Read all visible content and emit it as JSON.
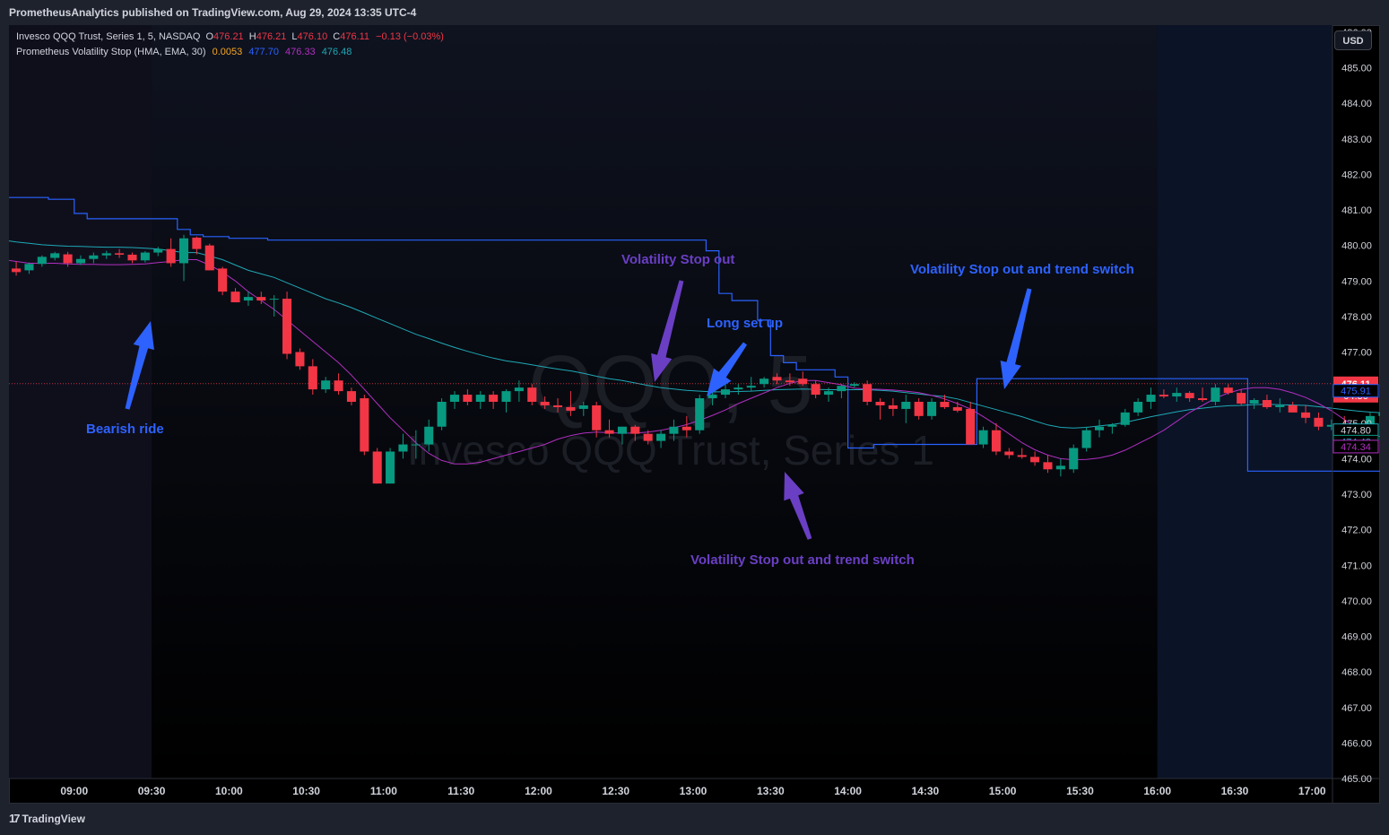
{
  "header": {
    "published": "PrometheusAnalytics published on TradingView.com, Aug 29, 2024 13:35 UTC-4"
  },
  "legend": {
    "symbol": "Invesco QQQ Trust, Series 1, 5, NASDAQ",
    "o_label": "O",
    "o_value": "476.21",
    "h_label": "H",
    "h_value": "476.21",
    "l_label": "L",
    "l_value": "476.10",
    "c_label": "C",
    "c_value": "476.11",
    "change": "−0.13 (−0.03%)",
    "indicator": "Prometheus Volatility Stop (HMA, EMA, 30)",
    "ind_v1": "0.0053",
    "ind_v2": "477.70",
    "ind_v3": "476.33",
    "ind_v4": "476.48"
  },
  "watermark": {
    "line1": "QQQ, 5",
    "line2": "Invesco QQQ Trust, Series 1"
  },
  "currency_button": "USD",
  "footer": {
    "brand": "TradingView",
    "logo_mark": "17"
  },
  "annotations": [
    {
      "text": "Volatility Stop out",
      "color": "#6a3fc4"
    },
    {
      "text": "Volatility Stop out and trend switch",
      "color": "#2e62ff"
    },
    {
      "text": "Long set up",
      "color": "#2e62ff"
    },
    {
      "text": "Bearish ride",
      "color": "#2e62ff"
    },
    {
      "text": "Volatility Stop out and trend switch",
      "color": "#6a3fc4"
    }
  ],
  "colors": {
    "up": "#089981",
    "down": "#f23645",
    "stop": "#2962ff",
    "ema": "#1fa8b5",
    "hma": "#b12fc0",
    "bg": "#000000",
    "premarket_shade": "#0f0f1c",
    "postmarket_shade": "#0b1326",
    "arrow_blue": "#2e62ff",
    "arrow_purple": "#6a3fc4"
  },
  "chart_data": {
    "type": "candlestick",
    "ylim": [
      465.0,
      486.2
    ],
    "y_ticks": [
      "465.00",
      "466.00",
      "467.00",
      "468.00",
      "469.00",
      "470.00",
      "471.00",
      "472.00",
      "473.00",
      "474.00",
      "475.00",
      "476.00",
      "477.00",
      "478.00",
      "479.00",
      "480.00",
      "481.00",
      "482.00",
      "483.00",
      "484.00",
      "485.00",
      "486.00"
    ],
    "x_ticks": [
      "09:00",
      "09:30",
      "10:00",
      "10:30",
      "11:00",
      "11:30",
      "12:00",
      "12:30",
      "13:00",
      "13:30",
      "14:00",
      "14:30",
      "15:00",
      "15:30",
      "16:00",
      "16:30",
      "17:00"
    ],
    "session": {
      "open": "09:30",
      "close": "16:00"
    },
    "start_time": "08:30",
    "interval_minutes": 5,
    "candles": [
      [
        479.72,
        479.8,
        479.3,
        479.35
      ],
      [
        479.35,
        479.55,
        479.15,
        479.25
      ],
      [
        479.3,
        479.52,
        479.2,
        479.48
      ],
      [
        479.48,
        479.72,
        479.4,
        479.68
      ],
      [
        479.65,
        479.82,
        479.58,
        479.78
      ],
      [
        479.75,
        479.82,
        479.4,
        479.5
      ],
      [
        479.5,
        479.72,
        479.45,
        479.62
      ],
      [
        479.62,
        479.8,
        479.5,
        479.72
      ],
      [
        479.72,
        479.85,
        479.62,
        479.78
      ],
      [
        479.78,
        479.9,
        479.65,
        479.74
      ],
      [
        479.74,
        479.8,
        479.5,
        479.58
      ],
      [
        479.58,
        479.84,
        479.52,
        479.8
      ],
      [
        479.8,
        479.96,
        479.7,
        479.9
      ],
      [
        479.9,
        480.2,
        479.4,
        479.5
      ],
      [
        479.5,
        480.3,
        479.0,
        480.2
      ],
      [
        480.22,
        480.25,
        479.75,
        479.9
      ],
      [
        480.0,
        480.05,
        479.3,
        479.3
      ],
      [
        479.35,
        479.4,
        478.6,
        478.7
      ],
      [
        478.7,
        478.8,
        478.4,
        478.4
      ],
      [
        478.45,
        478.7,
        478.3,
        478.55
      ],
      [
        478.55,
        478.7,
        478.35,
        478.45
      ],
      [
        478.5,
        478.6,
        478.0,
        478.5
      ],
      [
        478.5,
        478.7,
        476.8,
        476.95
      ],
      [
        477.0,
        477.1,
        476.5,
        476.6
      ],
      [
        476.6,
        476.8,
        475.8,
        475.95
      ],
      [
        475.95,
        476.3,
        475.85,
        476.2
      ],
      [
        476.2,
        476.4,
        475.8,
        475.9
      ],
      [
        475.9,
        476.0,
        475.5,
        475.6
      ],
      [
        475.7,
        475.8,
        474.1,
        474.2
      ],
      [
        474.2,
        474.3,
        473.3,
        473.3
      ],
      [
        473.3,
        474.3,
        473.3,
        474.2
      ],
      [
        474.2,
        474.7,
        474.0,
        474.4
      ],
      [
        474.4,
        474.8,
        474.0,
        474.4
      ],
      [
        474.4,
        475.1,
        474.2,
        474.9
      ],
      [
        474.9,
        475.7,
        474.8,
        475.6
      ],
      [
        475.6,
        475.9,
        475.4,
        475.8
      ],
      [
        475.8,
        475.95,
        475.5,
        475.6
      ],
      [
        475.6,
        475.9,
        475.4,
        475.8
      ],
      [
        475.8,
        475.9,
        475.4,
        475.6
      ],
      [
        475.6,
        475.95,
        475.3,
        475.9
      ],
      [
        475.9,
        476.2,
        475.6,
        476.0
      ],
      [
        476.0,
        476.1,
        475.5,
        475.6
      ],
      [
        475.6,
        475.75,
        475.4,
        475.5
      ],
      [
        475.5,
        475.7,
        475.3,
        475.45
      ],
      [
        475.45,
        475.9,
        475.2,
        475.35
      ],
      [
        475.4,
        475.6,
        475.2,
        475.5
      ],
      [
        475.5,
        475.6,
        474.6,
        474.8
      ],
      [
        474.8,
        475.1,
        474.6,
        474.7
      ],
      [
        474.7,
        474.9,
        474.4,
        474.9
      ],
      [
        474.9,
        474.95,
        474.5,
        474.7
      ],
      [
        474.7,
        474.8,
        474.4,
        474.5
      ],
      [
        474.5,
        474.8,
        474.3,
        474.7
      ],
      [
        474.7,
        475.1,
        474.5,
        474.9
      ],
      [
        474.9,
        475.2,
        474.6,
        474.8
      ],
      [
        474.8,
        475.8,
        474.7,
        475.7
      ],
      [
        475.7,
        475.9,
        475.5,
        475.8
      ],
      [
        475.8,
        476.1,
        475.7,
        475.95
      ],
      [
        475.95,
        476.1,
        475.8,
        476.0
      ],
      [
        476.0,
        476.3,
        475.9,
        476.05
      ],
      [
        476.1,
        476.3,
        476.0,
        476.25
      ],
      [
        476.3,
        476.4,
        476.1,
        476.2
      ],
      [
        476.2,
        476.4,
        476.05,
        476.15
      ],
      [
        476.25,
        476.45,
        476.05,
        476.1
      ],
      [
        476.1,
        476.2,
        475.7,
        475.8
      ],
      [
        475.8,
        476.0,
        475.6,
        475.9
      ],
      [
        475.9,
        476.1,
        475.7,
        476.05
      ],
      [
        476.05,
        476.15,
        476.0,
        476.1
      ],
      [
        476.1,
        476.2,
        475.5,
        475.6
      ],
      [
        475.6,
        475.7,
        475.1,
        475.5
      ],
      [
        475.5,
        475.7,
        475.2,
        475.4
      ],
      [
        475.4,
        475.8,
        475.0,
        475.6
      ],
      [
        475.6,
        475.7,
        475.1,
        475.2
      ],
      [
        475.2,
        475.7,
        475.1,
        475.6
      ],
      [
        475.6,
        475.8,
        475.4,
        475.45
      ],
      [
        475.45,
        475.6,
        475.3,
        475.35
      ],
      [
        475.4,
        475.6,
        474.4,
        474.4
      ],
      [
        474.4,
        474.9,
        474.3,
        474.8
      ],
      [
        474.8,
        475.0,
        474.1,
        474.2
      ],
      [
        474.2,
        474.3,
        474.0,
        474.1
      ],
      [
        474.1,
        474.3,
        474.0,
        474.05
      ],
      [
        474.05,
        474.2,
        473.8,
        473.9
      ],
      [
        473.9,
        474.1,
        473.6,
        473.7
      ],
      [
        473.7,
        474.0,
        473.5,
        473.8
      ],
      [
        473.7,
        474.4,
        473.6,
        474.3
      ],
      [
        474.3,
        474.9,
        474.2,
        474.8
      ],
      [
        474.8,
        475.1,
        474.6,
        474.9
      ],
      [
        474.9,
        475.0,
        474.7,
        474.95
      ],
      [
        474.95,
        475.4,
        474.9,
        475.3
      ],
      [
        475.3,
        475.7,
        475.2,
        475.6
      ],
      [
        475.6,
        476.0,
        475.4,
        475.8
      ],
      [
        475.8,
        475.95,
        475.7,
        475.75
      ],
      [
        475.75,
        476.0,
        475.6,
        475.85
      ],
      [
        475.85,
        475.9,
        475.6,
        475.7
      ],
      [
        475.7,
        476.0,
        475.6,
        475.65
      ],
      [
        475.6,
        476.1,
        475.5,
        476.0
      ],
      [
        476.0,
        476.1,
        475.8,
        475.85
      ],
      [
        475.85,
        475.95,
        475.5,
        475.55
      ],
      [
        475.55,
        475.7,
        475.4,
        475.65
      ],
      [
        475.65,
        475.8,
        475.4,
        475.45
      ],
      [
        475.45,
        475.7,
        475.3,
        475.5
      ],
      [
        475.5,
        475.6,
        475.3,
        475.3
      ],
      [
        475.3,
        475.5,
        475.0,
        475.15
      ],
      [
        475.15,
        475.3,
        474.8,
        474.9
      ],
      [
        474.9,
        475.1,
        474.8,
        474.95
      ],
      [
        474.95,
        475.2,
        474.7,
        474.8
      ],
      [
        474.8,
        474.95,
        474.6,
        474.7
      ],
      [
        474.7,
        475.3,
        474.6,
        475.2
      ],
      [
        475.2,
        475.4,
        474.7,
        475.3
      ],
      [
        475.3,
        475.4,
        474.9,
        474.9
      ],
      [
        474.9,
        475.05,
        474.8,
        474.95
      ],
      [
        474.95,
        475.0,
        474.7,
        474.8
      ],
      [
        474.8,
        474.95,
        474.7,
        474.9
      ],
      [
        474.9,
        475.0,
        474.8,
        474.85
      ],
      [
        474.85,
        474.95,
        474.75,
        474.9
      ],
      [
        474.9,
        474.95,
        474.7,
        474.75
      ],
      [
        474.75,
        474.85,
        474.6,
        474.65
      ],
      [
        474.65,
        474.8,
        474.4,
        474.45
      ],
      [
        474.45,
        474.6,
        474.35,
        474.4
      ],
      [
        474.4,
        474.5,
        474.35,
        474.45
      ],
      [
        474.45,
        474.55,
        474.35,
        474.4
      ],
      [
        474.4,
        474.5,
        474.3,
        474.35
      ],
      [
        474.35,
        474.5,
        474.3,
        474.45
      ],
      [
        474.45,
        474.7,
        474.4,
        474.65
      ],
      [
        474.65,
        474.7,
        474.4,
        474.45
      ],
      [
        474.45,
        474.5,
        474.35,
        474.4
      ],
      [
        474.4,
        474.6,
        474.35,
        474.55
      ],
      [
        474.55,
        474.7,
        474.5,
        474.6
      ]
    ],
    "volatility_stop": [
      481.35,
      481.35,
      481.35,
      481.35,
      481.3,
      481.3,
      480.9,
      480.75,
      480.75,
      480.75,
      480.75,
      480.75,
      480.75,
      480.75,
      480.45,
      480.3,
      480.25,
      480.25,
      480.2,
      480.2,
      480.2,
      480.15,
      480.15,
      480.15,
      480.15,
      480.15,
      480.15,
      480.15,
      480.15,
      480.15,
      480.15,
      480.15,
      480.15,
      480.15,
      480.15,
      480.15,
      480.15,
      480.15,
      480.15,
      480.15,
      480.15,
      480.15,
      480.15,
      480.15,
      480.15,
      480.15,
      480.15,
      480.15,
      480.15,
      480.15,
      480.15,
      480.15,
      480.15,
      480.15,
      480.15,
      479.85,
      478.65,
      478.45,
      478.45,
      477.9,
      476.9,
      476.7,
      476.5,
      476.5,
      476.5,
      476.3,
      474.3,
      474.3,
      474.4,
      474.4,
      474.4,
      474.4,
      474.4,
      474.4,
      474.4,
      474.4,
      476.25,
      476.25,
      476.25,
      476.25,
      476.25,
      476.25,
      476.25,
      476.25,
      476.25,
      476.25,
      476.25,
      476.25,
      476.25,
      476.25,
      476.25,
      476.25,
      476.25,
      476.25,
      476.25,
      476.25,
      476.25,
      473.65,
      473.65,
      473.65,
      473.65,
      473.65,
      473.65,
      473.65,
      473.65,
      473.65,
      473.65,
      473.65,
      473.65,
      473.65,
      473.65,
      473.65,
      473.65,
      473.65,
      475.85,
      475.85,
      475.85,
      475.85,
      475.85,
      475.85,
      475.85,
      475.85,
      475.85,
      475.85,
      475.85,
      475.85,
      475.85,
      475.85
    ],
    "series": [
      {
        "type": "line",
        "values": [
          480.15,
          480.1,
          480.06,
          480.02,
          480.0,
          479.98,
          479.97,
          479.96,
          479.95,
          479.95,
          479.94,
          479.92,
          479.9,
          479.85,
          479.8,
          479.8,
          479.7,
          479.6,
          479.45,
          479.3,
          479.2,
          479.1,
          478.95,
          478.8,
          478.65,
          478.5,
          478.38,
          478.25,
          478.1,
          477.95,
          477.8,
          477.65,
          477.5,
          477.38,
          477.25,
          477.13,
          477.02,
          476.92,
          476.83,
          476.75,
          476.7,
          476.64,
          476.58,
          476.52,
          476.47,
          476.4,
          476.32,
          476.25,
          476.2,
          476.13,
          476.06,
          476.0,
          475.96,
          475.92,
          475.9,
          475.88,
          475.88,
          475.89,
          475.9,
          475.92,
          475.94,
          475.95,
          475.96,
          475.95,
          475.94,
          475.94,
          475.94,
          475.94,
          475.92,
          475.9,
          475.86,
          475.82,
          475.78,
          475.75,
          475.68,
          475.58,
          475.48,
          475.38,
          475.28,
          475.18,
          475.06,
          474.95,
          474.88,
          474.86,
          474.88,
          474.92,
          474.96,
          475.02,
          475.1,
          475.18,
          475.25,
          475.32,
          475.38,
          475.42,
          475.46,
          475.49,
          475.5,
          475.52,
          475.53,
          475.52,
          475.51,
          475.5,
          475.46,
          475.42,
          475.38,
          475.34,
          475.31,
          475.29,
          475.24,
          475.2,
          475.16,
          475.11,
          475.08,
          475.05,
          475.03,
          475.0,
          474.97,
          474.94,
          474.9,
          474.86,
          474.84,
          474.82,
          474.81,
          474.8,
          474.8,
          474.8,
          474.8
        ]
      },
      {
        "type": "line",
        "values": [
          479.6,
          479.55,
          479.5,
          479.5,
          479.5,
          479.48,
          479.47,
          479.47,
          479.46,
          479.46,
          479.47,
          479.48,
          479.52,
          479.55,
          479.6,
          479.6,
          479.45,
          479.25,
          479.0,
          478.7,
          478.45,
          478.2,
          477.9,
          477.6,
          477.3,
          477.0,
          476.7,
          476.35,
          475.95,
          475.55,
          475.15,
          474.8,
          474.45,
          474.15,
          473.95,
          473.85,
          473.85,
          473.9,
          474.0,
          474.1,
          474.2,
          474.3,
          474.4,
          474.55,
          474.65,
          474.72,
          474.75,
          474.73,
          474.72,
          474.72,
          474.75,
          474.8,
          474.87,
          474.96,
          475.08,
          475.22,
          475.37,
          475.55,
          475.7,
          475.85,
          476.0,
          476.12,
          476.2,
          476.2,
          476.14,
          476.08,
          475.98,
          475.96,
          475.95,
          475.93,
          475.9,
          475.86,
          475.78,
          475.68,
          475.55,
          475.4,
          475.18,
          474.95,
          474.7,
          474.45,
          474.25,
          474.1,
          474.0,
          473.97,
          473.98,
          474.02,
          474.1,
          474.24,
          474.42,
          474.6,
          474.8,
          475.05,
          475.3,
          475.5,
          475.7,
          475.85,
          475.95,
          476.0,
          476.0,
          475.95,
          475.85,
          475.72,
          475.55,
          475.35,
          475.1,
          474.86,
          474.7,
          474.6,
          474.57,
          474.6,
          474.66,
          474.75,
          474.82,
          474.86,
          474.87,
          474.83,
          474.76,
          474.7,
          474.64,
          474.57,
          474.5,
          474.44,
          474.39,
          474.36,
          474.34,
          474.34,
          474.34
        ]
      }
    ],
    "last_price_label": "476.11",
    "countdown_label": "04:36",
    "price_labels": [
      "475.91",
      "474.80",
      "474.48",
      "474.34"
    ]
  }
}
